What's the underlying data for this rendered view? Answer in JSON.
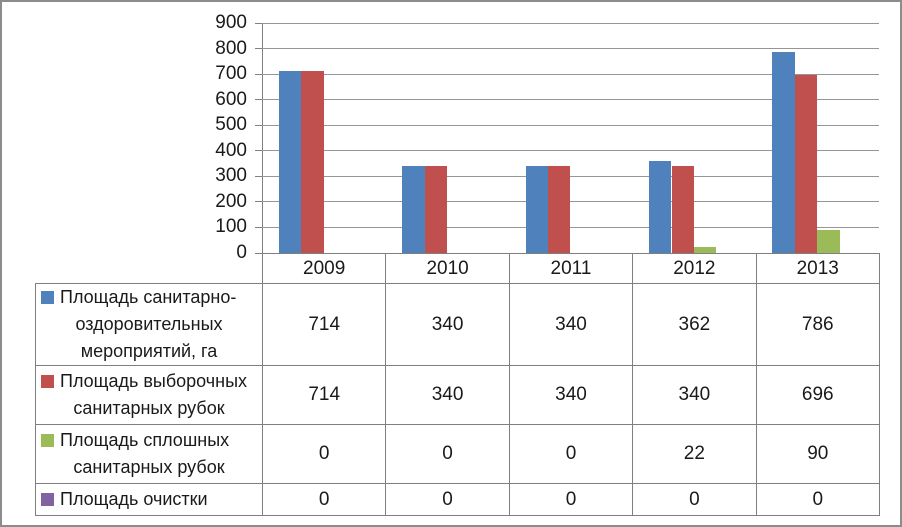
{
  "chart_data": {
    "type": "bar",
    "title": "",
    "xlabel": "",
    "ylabel": "",
    "categories": [
      "2009",
      "2010",
      "2011",
      "2012",
      "2013"
    ],
    "series": [
      {
        "name": "Площадь санитарно-оздоровительных мероприятий, га",
        "label_lines": [
          "Площадь санитарно-",
          "оздоровительных",
          "мероприятий, га"
        ],
        "color": "#4F81BD",
        "values": [
          714,
          340,
          340,
          362,
          786
        ]
      },
      {
        "name": "Площадь выборочных санитарных рубок",
        "label_lines": [
          "Площадь выборочных",
          "санитарных рубок"
        ],
        "color": "#C0504D",
        "values": [
          714,
          340,
          340,
          340,
          696
        ]
      },
      {
        "name": "Площадь сплошных санитарных рубок",
        "label_lines": [
          "Площадь сплошных",
          "санитарных рубок"
        ],
        "color": "#9BBB59",
        "values": [
          0,
          0,
          0,
          22,
          90
        ]
      },
      {
        "name": "Площадь очистки",
        "label_lines": [
          "Площадь очистки"
        ],
        "color": "#8064A2",
        "values": [
          0,
          0,
          0,
          0,
          0
        ]
      }
    ],
    "ylim": [
      0,
      900
    ],
    "yticks": [
      900,
      800,
      700,
      600,
      500,
      400,
      300,
      200,
      100,
      0
    ],
    "grid": true,
    "legend_position": "table-left-column",
    "gap_ratio": 1.5
  },
  "style": {
    "grid_color": "#969696",
    "axis_color": "#808080",
    "table_border_color": "#7f7f7f",
    "frame_color": "#8c8c8c",
    "text_color": "#1a1a1a",
    "background": "#ffffff"
  }
}
